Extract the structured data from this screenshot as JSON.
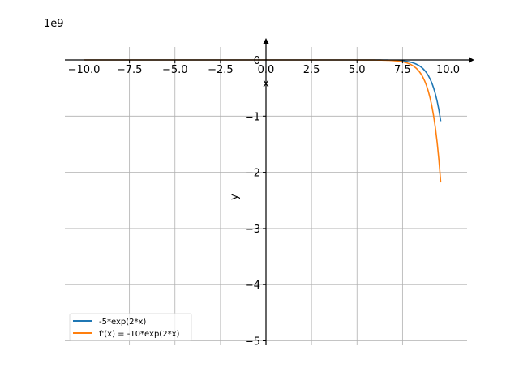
{
  "chart_data": {
    "type": "line",
    "title": "",
    "xlabel": "x",
    "ylabel": "y",
    "y_offset_label": "1e9",
    "xlim": [
      -11,
      11
    ],
    "ylim": [
      -5.03,
      0.22
    ],
    "y_scale": 1000000000.0,
    "grid": true,
    "legend_placement": "lower-left",
    "xticks": [
      -10,
      -7.5,
      -5,
      -2.5,
      0,
      2.5,
      5,
      7.5,
      10
    ],
    "xtick_labels": [
      "−10.0",
      "−7.5",
      "−5.0",
      "−2.5",
      "0.0",
      "2.5",
      "5.0",
      "7.5",
      "10.0"
    ],
    "yticks": [
      0,
      -1,
      -2,
      -3,
      -4,
      -5
    ],
    "ytick_labels": [
      "0",
      "−1",
      "−2",
      "−3",
      "−4",
      "−5"
    ],
    "x_range": [
      -10,
      9.6
    ],
    "series": [
      {
        "name": "-5*exp(2*x)",
        "coef": -5,
        "rate": 2,
        "color": "#1f77b4"
      },
      {
        "name": "f'(x) = -10*exp(2*x)",
        "coef": -10,
        "rate": 2,
        "color": "#ff7f0e"
      }
    ]
  }
}
